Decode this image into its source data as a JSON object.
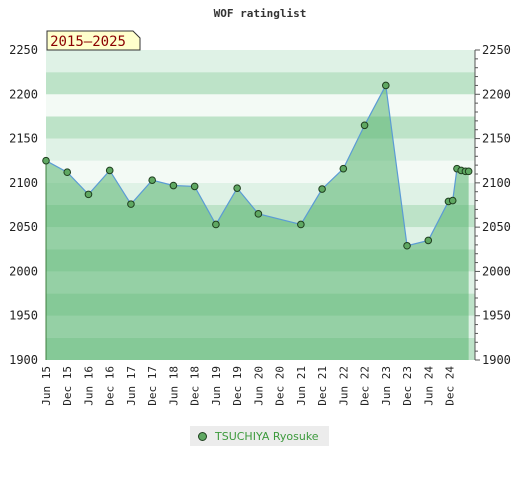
{
  "colors": {
    "band_dark": "#bde3c8",
    "band_light": "#dff2e6",
    "band_white": "#f3faf5",
    "area_fill": "#57b56f",
    "area_opacity": 0.55,
    "line": "#5b9bd5",
    "marker": "#5fa862",
    "marker_stroke": "#1f3f1f",
    "badge_fill": "#ffffcc",
    "badge_stroke": "#333333",
    "badge_text": "#8b0000",
    "legend_text": "#3c9a3c"
  },
  "chart_data": {
    "type": "area",
    "title": "WOF ratinglist",
    "period_label": "2015–2025",
    "x_tick_labels": [
      "Jun 15",
      "Dec 15",
      "Jun 16",
      "Dec 16",
      "Jun 17",
      "Dec 17",
      "Jun 18",
      "Dec 18",
      "Jun 19",
      "Dec 19",
      "Jun 20",
      "Dec 20",
      "Jun 21",
      "Dec 21",
      "Jun 22",
      "Dec 22",
      "Jun 23",
      "Dec 23",
      "Jun 24",
      "Dec 24"
    ],
    "x_range": [
      0,
      20.2
    ],
    "ylim": [
      1900,
      2250
    ],
    "y_ticks": [
      1900,
      1950,
      2000,
      2050,
      2100,
      2150,
      2200,
      2250
    ],
    "grid": true,
    "legend_position": "bottom-center",
    "series": [
      {
        "name": "TSUCHIYA Ryosuke",
        "points": [
          [
            0.0,
            2125
          ],
          [
            1.0,
            2112
          ],
          [
            2.0,
            2087
          ],
          [
            3.0,
            2114
          ],
          [
            4.0,
            2076
          ],
          [
            5.0,
            2103
          ],
          [
            6.0,
            2097
          ],
          [
            7.0,
            2096
          ],
          [
            8.0,
            2053
          ],
          [
            9.0,
            2094
          ],
          [
            10.0,
            2065
          ],
          [
            12.0,
            2053
          ],
          [
            13.0,
            2093
          ],
          [
            14.0,
            2116
          ],
          [
            15.0,
            2165
          ],
          [
            16.0,
            2210
          ],
          [
            17.0,
            2029
          ],
          [
            18.0,
            2035
          ],
          [
            18.95,
            2079
          ],
          [
            19.15,
            2080
          ],
          [
            19.35,
            2116
          ],
          [
            19.55,
            2114
          ],
          [
            19.75,
            2113
          ],
          [
            19.9,
            2113
          ]
        ]
      }
    ]
  }
}
